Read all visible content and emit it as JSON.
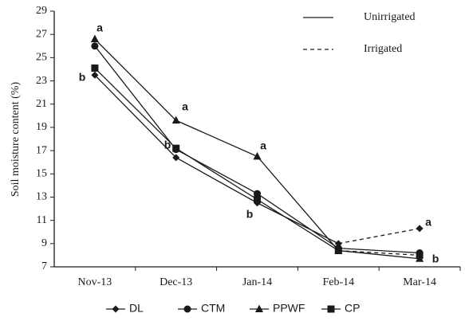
{
  "chart_data": {
    "type": "line",
    "y_label": "Soil moisture content (%)",
    "categories": [
      "Nov-13",
      "Dec-13",
      "Jan-14",
      "Feb-14",
      "Mar-14"
    ],
    "series": [
      {
        "name": "DL",
        "color": "#1a1a1a",
        "marker": "diamond",
        "values": [
          23.5,
          16.4,
          12.5,
          9.0,
          10.3
        ],
        "dashed_from": 3
      },
      {
        "name": "CTM",
        "color": "#1a1a1a",
        "marker": "circle",
        "values": [
          26.0,
          17.1,
          13.3,
          8.6,
          8.2
        ]
      },
      {
        "name": "PPWF",
        "color": "#1a1a1a",
        "marker": "triangle",
        "values": [
          26.6,
          19.6,
          16.5,
          8.4,
          7.7
        ]
      },
      {
        "name": "CP",
        "color": "#1a1a1a",
        "marker": "square",
        "values": [
          24.1,
          17.2,
          12.8,
          8.4,
          8.0
        ],
        "dashed_from": 3
      }
    ],
    "ylim": [
      7,
      29
    ],
    "yticks": [
      7,
      9,
      11,
      13,
      15,
      17,
      19,
      21,
      23,
      25,
      27,
      29
    ],
    "line_legend": [
      "Unirrigated",
      "Irrigated"
    ],
    "annotations": [
      "a",
      "b",
      "a",
      "b",
      "a",
      "b",
      "a",
      "b"
    ]
  }
}
